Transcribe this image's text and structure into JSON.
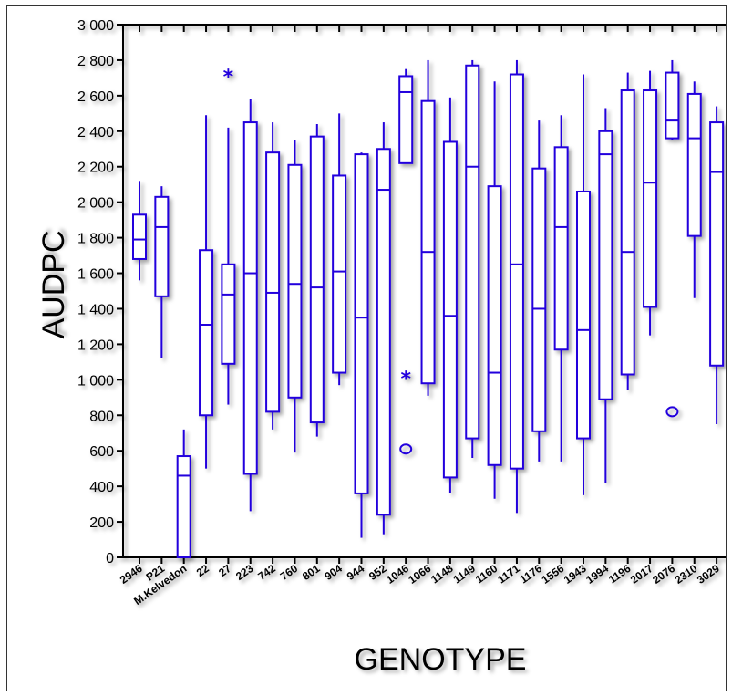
{
  "chart_data": {
    "type": "box",
    "title": "",
    "xlabel": "GENOTYPE",
    "ylabel": "AUDPC",
    "ylim": [
      0,
      3000
    ],
    "y_ticks": [
      0,
      200,
      400,
      600,
      800,
      1000,
      1200,
      1400,
      1600,
      1800,
      2000,
      2200,
      2400,
      2600,
      2800,
      3000
    ],
    "y_tick_labels": [
      "0",
      "200",
      "400",
      "600",
      "800",
      "1 000",
      "1 200",
      "1 400",
      "1 600",
      "1 800",
      "2 000",
      "2 200",
      "2 400",
      "2 600",
      "2 800",
      "3 000"
    ],
    "grid": false,
    "legend": "none",
    "box_color": "#2200dd",
    "categories": [
      "2946",
      "P21",
      "M.Kelvedon",
      "22",
      "27",
      "223",
      "742",
      "760",
      "801",
      "904",
      "944",
      "952",
      "1046",
      "1066",
      "1148",
      "1149",
      "1160",
      "1171",
      "1176",
      "1556",
      "1943",
      "1994",
      "1196",
      "2017",
      "2076",
      "2310",
      "3029"
    ],
    "boxes": [
      {
        "min": 1560,
        "q1": 1680,
        "median": 1790,
        "q3": 1930,
        "max": 2120
      },
      {
        "min": 1120,
        "q1": 1470,
        "median": 1860,
        "q3": 2030,
        "max": 2090
      },
      {
        "min": 0,
        "q1": 0,
        "median": 460,
        "q3": 570,
        "max": 720
      },
      {
        "min": 500,
        "q1": 800,
        "median": 1310,
        "q3": 1730,
        "max": 2490
      },
      {
        "min": 860,
        "q1": 1090,
        "median": 1480,
        "q3": 1650,
        "max": 2420
      },
      {
        "min": 260,
        "q1": 470,
        "median": 1600,
        "q3": 2450,
        "max": 2580
      },
      {
        "min": 720,
        "q1": 820,
        "median": 1490,
        "q3": 2280,
        "max": 2450
      },
      {
        "min": 590,
        "q1": 900,
        "median": 1540,
        "q3": 2210,
        "max": 2350
      },
      {
        "min": 680,
        "q1": 760,
        "median": 1520,
        "q3": 2370,
        "max": 2440
      },
      {
        "min": 970,
        "q1": 1040,
        "median": 1610,
        "q3": 2150,
        "max": 2500
      },
      {
        "min": 110,
        "q1": 360,
        "median": 1350,
        "q3": 2270,
        "max": 2280
      },
      {
        "min": 130,
        "q1": 240,
        "median": 2070,
        "q3": 2300,
        "max": 2450
      },
      {
        "min": 2220,
        "q1": 2220,
        "median": 2620,
        "q3": 2710,
        "max": 2750
      },
      {
        "min": 910,
        "q1": 980,
        "median": 1720,
        "q3": 2570,
        "max": 2800
      },
      {
        "min": 360,
        "q1": 450,
        "median": 1360,
        "q3": 2340,
        "max": 2590
      },
      {
        "min": 560,
        "q1": 670,
        "median": 2200,
        "q3": 2770,
        "max": 2800
      },
      {
        "min": 330,
        "q1": 520,
        "median": 1040,
        "q3": 2090,
        "max": 2680
      },
      {
        "min": 250,
        "q1": 500,
        "median": 1650,
        "q3": 2720,
        "max": 2800
      },
      {
        "min": 540,
        "q1": 710,
        "median": 1400,
        "q3": 2190,
        "max": 2460
      },
      {
        "min": 540,
        "q1": 1170,
        "median": 1860,
        "q3": 2310,
        "max": 2490
      },
      {
        "min": 350,
        "q1": 670,
        "median": 1280,
        "q3": 2060,
        "max": 2720
      },
      {
        "min": 420,
        "q1": 890,
        "median": 2270,
        "q3": 2400,
        "max": 2530
      },
      {
        "min": 940,
        "q1": 1030,
        "median": 1720,
        "q3": 2630,
        "max": 2730
      },
      {
        "min": 1250,
        "q1": 1410,
        "median": 2110,
        "q3": 2630,
        "max": 2740
      },
      {
        "min": 2350,
        "q1": 2360,
        "median": 2460,
        "q3": 2730,
        "max": 2800
      },
      {
        "min": 1460,
        "q1": 1810,
        "median": 2360,
        "q3": 2610,
        "max": 2680
      },
      {
        "min": 750,
        "q1": 1080,
        "median": 2170,
        "q3": 2450,
        "max": 2540
      }
    ],
    "outliers": [
      {
        "category": "27",
        "value": 2720,
        "marker": "star"
      },
      {
        "category": "1046",
        "value": 1020,
        "marker": "star"
      },
      {
        "category": "1046",
        "value": 610,
        "marker": "circle"
      },
      {
        "category": "2076",
        "value": 820,
        "marker": "circle"
      }
    ]
  }
}
